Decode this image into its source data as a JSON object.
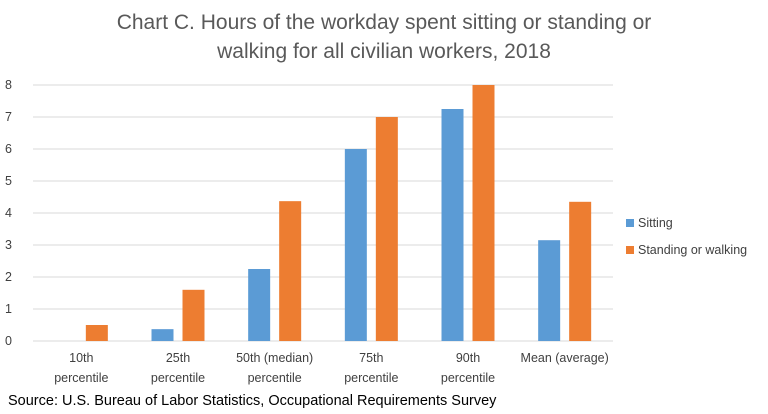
{
  "chart_data": {
    "type": "bar",
    "title": [
      "Chart C. Hours of the workday spent sitting or standing or",
      "walking for all civilian workers, 2018"
    ],
    "categories": [
      [
        "10th",
        "percentile"
      ],
      [
        "25th",
        "percentile"
      ],
      [
        "50th (median)",
        "percentile"
      ],
      [
        "75th",
        "percentile"
      ],
      [
        "90th",
        "percentile"
      ],
      [
        "Mean (average)"
      ]
    ],
    "series": [
      {
        "name": "Sitting",
        "color": "#5b9bd5",
        "values": [
          0,
          0.37,
          2.25,
          6.0,
          7.25,
          3.15
        ]
      },
      {
        "name": "Standing or walking",
        "color": "#ed7d31",
        "values": [
          0.5,
          1.6,
          4.37,
          7.0,
          8.0,
          4.35
        ]
      }
    ],
    "ylim": [
      0,
      8
    ],
    "yticks": [
      "0",
      "1",
      "2",
      "3",
      "4",
      "5",
      "6",
      "7",
      "8"
    ],
    "grid": true,
    "legend": "right",
    "xlabel": "",
    "ylabel": ""
  },
  "source": "Source: U.S. Bureau of Labor Statistics, Occupational Requirements Survey"
}
